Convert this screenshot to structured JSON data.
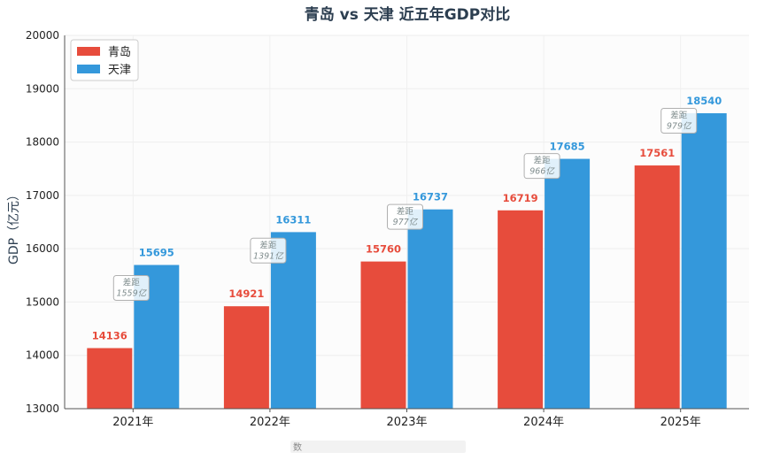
{
  "chart_data": {
    "type": "bar",
    "title": "青岛 vs 天津 近五年GDP对比",
    "ylabel": "GDP（亿元）",
    "xlabel": "",
    "categories": [
      "2021年",
      "2022年",
      "2023年",
      "2024年",
      "2025年"
    ],
    "ylim": [
      13000,
      20000
    ],
    "yticks": [
      13000,
      14000,
      15000,
      16000,
      17000,
      18000,
      19000,
      20000
    ],
    "grid": true,
    "legend_position": "top-left",
    "series": [
      {
        "name": "青岛",
        "color": "#e74c3c",
        "values": [
          14136,
          14921,
          15760,
          16719,
          17561
        ]
      },
      {
        "name": "天津",
        "color": "#3498db",
        "values": [
          15695,
          16311,
          16737,
          17685,
          18540
        ]
      }
    ],
    "annotations": {
      "gap_title": "差距",
      "gaps": [
        "1559亿",
        "1391亿",
        "977亿",
        "966亿",
        "979亿"
      ]
    },
    "source_note": "数"
  }
}
